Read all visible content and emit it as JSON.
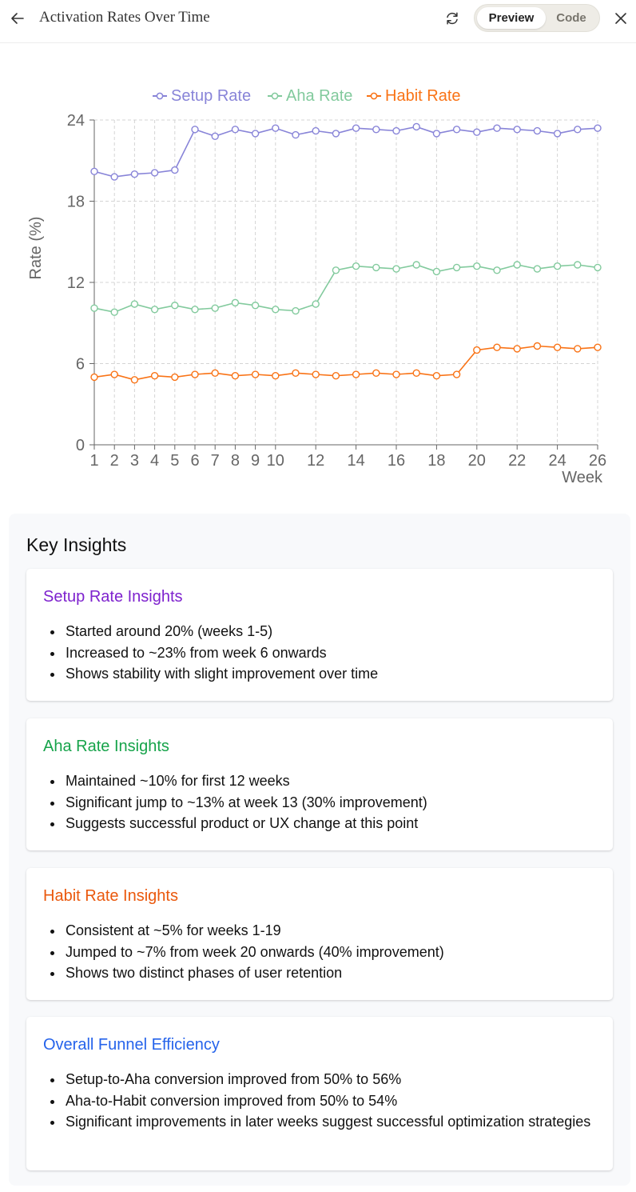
{
  "header": {
    "title": "Activation Rates Over Time",
    "preview_label": "Preview",
    "code_label": "Code"
  },
  "colors": {
    "setup": "#8884d8",
    "aha": "#82ca9d",
    "habit": "#f97316",
    "setup_title": "#7e22ce",
    "aha_title": "#16a34a",
    "habit_title": "#ea580c",
    "overall_title": "#2563eb"
  },
  "chart_data": {
    "type": "line",
    "xlabel": "Week",
    "ylabel": "Rate (%)",
    "ylim": [
      0,
      24
    ],
    "yticks": [
      0,
      6,
      12,
      18,
      24
    ],
    "xticks": [
      1,
      2,
      3,
      4,
      5,
      6,
      7,
      8,
      9,
      10,
      12,
      14,
      16,
      18,
      20,
      22,
      24,
      26
    ],
    "grid": true,
    "legend_position": "top",
    "x": [
      1,
      2,
      3,
      4,
      5,
      6,
      7,
      8,
      9,
      10,
      11,
      12,
      13,
      14,
      15,
      16,
      17,
      18,
      19,
      20,
      21,
      22,
      23,
      24,
      25,
      26
    ],
    "series": [
      {
        "name": "Setup Rate",
        "color": "#8884d8",
        "values": [
          20.2,
          19.8,
          20.0,
          20.1,
          20.3,
          23.3,
          22.8,
          23.3,
          23.0,
          23.4,
          22.9,
          23.2,
          23.0,
          23.4,
          23.3,
          23.2,
          23.5,
          23.0,
          23.3,
          23.1,
          23.4,
          23.3,
          23.2,
          23.0,
          23.3,
          23.4
        ]
      },
      {
        "name": "Aha Rate",
        "color": "#82ca9d",
        "values": [
          10.1,
          9.8,
          10.4,
          10.0,
          10.3,
          10.0,
          10.1,
          10.5,
          10.3,
          10.0,
          9.9,
          10.4,
          12.9,
          13.2,
          13.1,
          13.0,
          13.3,
          12.8,
          13.1,
          13.2,
          12.9,
          13.3,
          13.0,
          13.2,
          13.3,
          13.1
        ]
      },
      {
        "name": "Habit Rate",
        "color": "#f97316",
        "values": [
          5.0,
          5.2,
          4.8,
          5.1,
          5.0,
          5.2,
          5.3,
          5.1,
          5.2,
          5.1,
          5.3,
          5.2,
          5.1,
          5.2,
          5.3,
          5.2,
          5.3,
          5.1,
          5.2,
          7.0,
          7.2,
          7.1,
          7.3,
          7.2,
          7.1,
          7.2
        ]
      }
    ]
  },
  "insights": {
    "title": "Key Insights",
    "cards": [
      {
        "title": "Setup Rate Insights",
        "bullets": [
          "Started around 20% (weeks 1-5)",
          "Increased to ~23% from week 6 onwards",
          "Shows stability with slight improvement over time"
        ]
      },
      {
        "title": "Aha Rate Insights",
        "bullets": [
          "Maintained ~10% for first 12 weeks",
          "Significant jump to ~13% at week 13 (30% improvement)",
          "Suggests successful product or UX change at this point"
        ]
      },
      {
        "title": "Habit Rate Insights",
        "bullets": [
          "Consistent at ~5% for weeks 1-19",
          "Jumped to ~7% from week 20 onwards (40% improvement)",
          "Shows two distinct phases of user retention"
        ]
      },
      {
        "title": "Overall Funnel Efficiency",
        "bullets": [
          "Setup-to-Aha conversion improved from 50% to 56%",
          "Aha-to-Habit conversion improved from 50% to 54%",
          "Significant improvements in later weeks suggest successful optimization strategies"
        ]
      }
    ]
  }
}
